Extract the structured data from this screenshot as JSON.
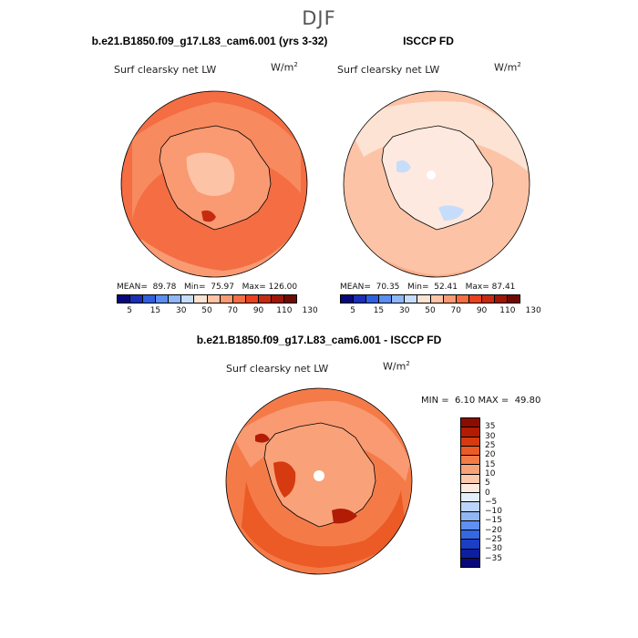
{
  "title": "DJF",
  "panels": [
    {
      "id": "model",
      "header": "b.e21.B1850.f09_g17.L83_cam6.001 (yrs 3-32)",
      "variable": "Surf clearsky net LW",
      "units_base": "W/m",
      "units_exp": "2",
      "mean_label": "MEAN=",
      "mean": "89.78",
      "min_label": "Min=",
      "min": "75.97",
      "max_label": "Max=",
      "max": "126.00",
      "colorbar_ticks": [
        "5",
        "15",
        "30",
        "50",
        "70",
        "90",
        "110",
        "130"
      ]
    },
    {
      "id": "obs",
      "header": "ISCCP FD",
      "variable": "Surf clearsky net LW",
      "units_base": "W/m",
      "units_exp": "2",
      "mean_label": "MEAN=",
      "mean": "70.35",
      "min_label": "Min=",
      "min": "52.41",
      "max_label": "Max=",
      "max": "87.41",
      "colorbar_ticks": [
        "5",
        "15",
        "30",
        "50",
        "70",
        "90",
        "110",
        "130"
      ]
    }
  ],
  "difference": {
    "header": "b.e21.B1850.f09_g17.L83_cam6.001 - ISCCP FD",
    "variable": "Surf clearsky net LW",
    "units_base": "W/m",
    "units_exp": "2",
    "min_label": "MIN =",
    "min": "6.10",
    "max_label": "MAX =",
    "max": "49.80",
    "colorbar_ticks": [
      "35",
      "30",
      "25",
      "20",
      "15",
      "10",
      "5",
      "0",
      "−5",
      "−10",
      "−15",
      "−20",
      "−25",
      "−30",
      "−35"
    ]
  },
  "colors": {
    "abs_scale": [
      "#08087a",
      "#1a2fb5",
      "#2f5fe0",
      "#5a8ef0",
      "#8fb6f6",
      "#c6dcfb",
      "#fbe3d2",
      "#fcc3a6",
      "#f99a72",
      "#f46d43",
      "#e8421e",
      "#c62b0f",
      "#9e1606",
      "#6e0a03"
    ],
    "diff_scale": [
      "#8b0d02",
      "#b21c05",
      "#d63a10",
      "#ec5a25",
      "#f47b48",
      "#f9a27a",
      "#fcc9ad",
      "#fde9df",
      "#e3eefc",
      "#bdd5fa",
      "#90b6f5",
      "#5f8ff0",
      "#3667e2",
      "#1c3ec4",
      "#0d1fa0",
      "#08087a"
    ],
    "land_outline": "#000000"
  }
}
